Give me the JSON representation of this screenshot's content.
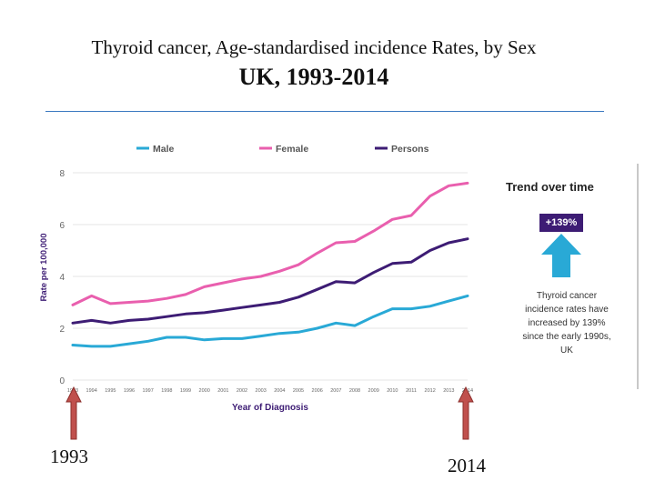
{
  "slide": {
    "title": "Thyroid cancer, Age-standardised incidence Rates, by Sex",
    "subtitle": "UK, 1993-2014"
  },
  "chart_data": {
    "type": "line",
    "x": [
      1993,
      1994,
      1995,
      1996,
      1997,
      1998,
      1999,
      2000,
      2001,
      2002,
      2003,
      2004,
      2005,
      2006,
      2007,
      2008,
      2009,
      2010,
      2011,
      2012,
      2013,
      2014
    ],
    "xlabel": "Year of Diagnosis",
    "ylabel": "Rate per 100,000",
    "ylim": [
      0,
      8
    ],
    "yticks": [
      0,
      2,
      4,
      6,
      8
    ],
    "series": [
      {
        "name": "Male",
        "color": "#29a9d6",
        "values": [
          1.35,
          1.3,
          1.3,
          1.4,
          1.5,
          1.65,
          1.65,
          1.55,
          1.6,
          1.6,
          1.7,
          1.8,
          1.85,
          2.0,
          2.2,
          2.1,
          2.45,
          2.75,
          2.75,
          2.85,
          3.05,
          3.25
        ]
      },
      {
        "name": "Female",
        "color": "#e95fae",
        "values": [
          2.9,
          3.25,
          2.95,
          3.0,
          3.05,
          3.15,
          3.3,
          3.6,
          3.75,
          3.9,
          4.0,
          4.2,
          4.45,
          4.9,
          5.3,
          5.35,
          5.75,
          6.2,
          6.35,
          7.1,
          7.5,
          7.6
        ]
      },
      {
        "name": "Persons",
        "color": "#3d1c74",
        "values": [
          2.2,
          2.3,
          2.2,
          2.3,
          2.35,
          2.45,
          2.55,
          2.6,
          2.7,
          2.8,
          2.9,
          3.0,
          3.2,
          3.5,
          3.8,
          3.75,
          4.15,
          4.5,
          4.55,
          5.0,
          5.3,
          5.45
        ]
      }
    ],
    "legend_position": "top",
    "grid": true
  },
  "trend": {
    "title": "Trend over time",
    "badge": "+139%",
    "note": "Thyroid cancer incidence rates have increased by 139% since the early 1990s, UK",
    "badge_color": "#3d1c74",
    "arrow_color": "#29a9d6"
  },
  "markers": {
    "start_year": "1993",
    "end_year": "2014",
    "arrow_color": "#c0504d"
  }
}
